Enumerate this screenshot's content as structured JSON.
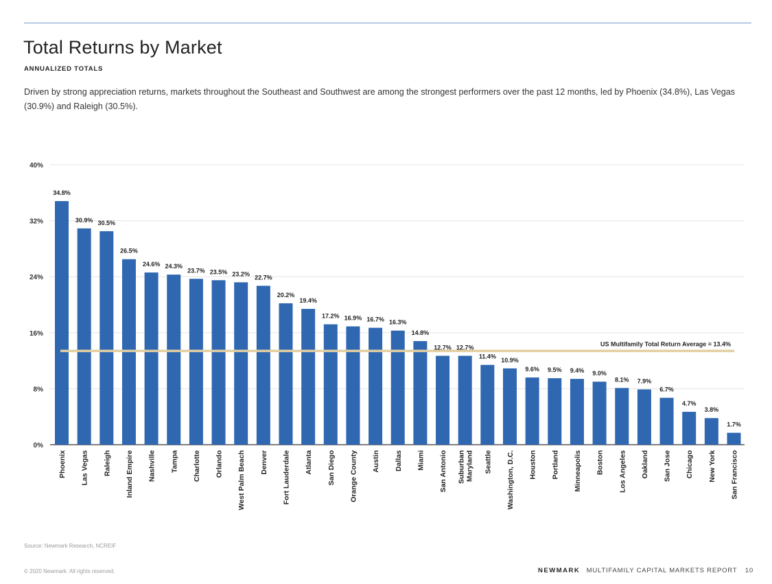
{
  "header": {
    "title": "Total Returns by Market",
    "subtitle": "ANNUALIZED TOTALS",
    "intro": "Driven by strong appreciation returns, markets throughout the Southeast and Southwest are among the strongest performers over the past 12 months, led by Phoenix (34.8%), Las Vegas (30.9%) and Raleigh (30.5%)."
  },
  "chart_data": {
    "type": "bar",
    "categories": [
      "Phoenix",
      "Las Vegas",
      "Raleigh",
      "Inland Empire",
      "Nashville",
      "Tampa",
      "Charlotte",
      "Orlando",
      "West Palm Beach",
      "Denver",
      "Fort Lauderdale",
      "Atlanta",
      "San Diego",
      "Orange County",
      "Austin",
      "Dallas",
      "Miami",
      "San Antonio",
      "Suburban Maryland",
      "Seattle",
      "Washington, D.C.",
      "Houston",
      "Portland",
      "Minneapolis",
      "Boston",
      "Los Angeles",
      "Oakland",
      "San Jose",
      "Chicago",
      "New York",
      "San Francisco"
    ],
    "values": [
      34.8,
      30.9,
      30.5,
      26.5,
      24.6,
      24.3,
      23.7,
      23.5,
      23.2,
      22.7,
      20.2,
      19.4,
      17.2,
      16.9,
      16.7,
      16.3,
      14.8,
      12.7,
      12.7,
      11.4,
      10.9,
      9.6,
      9.5,
      9.4,
      9.0,
      8.1,
      7.9,
      6.7,
      4.7,
      3.8,
      1.7
    ],
    "value_labels": [
      "34.8%",
      "30.9%",
      "30.5%",
      "26.5%",
      "24.6%",
      "24.3%",
      "23.7%",
      "23.5%",
      "23.2%",
      "22.7%",
      "20.2%",
      "19.4%",
      "17.2%",
      "16.9%",
      "16.7%",
      "16.3%",
      "14.8%",
      "12.7%",
      "12.7%",
      "11.4%",
      "10.9%",
      "9.6%",
      "9.5%",
      "9.4%",
      "9.0%",
      "8.1%",
      "7.9%",
      "6.7%",
      "4.7%",
      "3.8%",
      "1.7%"
    ],
    "yticks": [
      0,
      8,
      16,
      24,
      32,
      40
    ],
    "ytick_labels": [
      "0%",
      "8%",
      "16%",
      "24%",
      "32%",
      "40%"
    ],
    "ylim": [
      0,
      40
    ],
    "grid": true,
    "reference_line": {
      "value": 13.4,
      "label": "US Multifamily Total Return Average = 13.4%"
    },
    "colors": {
      "bar": "#2f67b1",
      "reference_line": "#e3cfa3",
      "grid": "#e4e4e4",
      "axis": "#333333"
    }
  },
  "footer": {
    "source": "Source: Newmark Research, NCREIF",
    "copyright": "© 2020 Newmark. All rights reserved.",
    "brand": "NEWMARK",
    "report": "MULTIFAMILY CAPITAL MARKETS REPORT",
    "page": "10"
  }
}
